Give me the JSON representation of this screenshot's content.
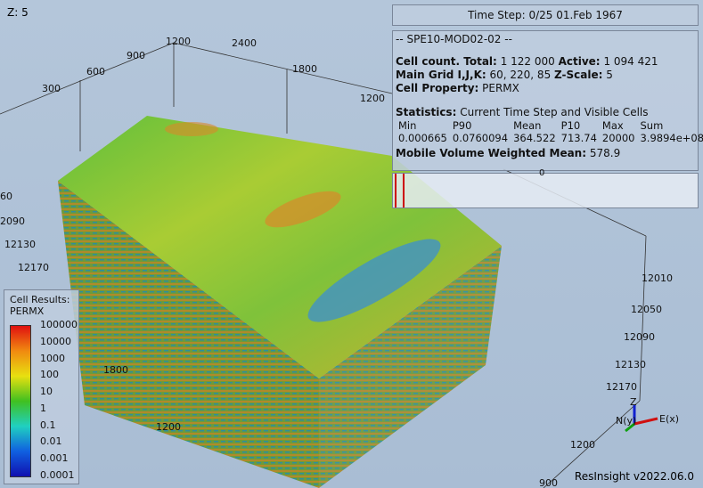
{
  "z_label": "Z: 5",
  "time_step": "Time Step: 0/25 01.Feb 1967",
  "info": {
    "case": "-- SPE10-MOD02-02 --",
    "cell_count_label": "Cell count. Total:",
    "cell_count_total": "1 122 000",
    "active_label": "Active:",
    "active": "1 094 421",
    "grid_label": "Main Grid I,J,K:",
    "grid_ijk": "60, 220, 85",
    "zscale_label": "Z-Scale:",
    "zscale": "5",
    "property_label": "Cell Property:",
    "property": "PERMX",
    "statistics_label": "Statistics:",
    "statistics_scope": "Current Time Step and Visible Cells",
    "stats_headers": [
      "Min",
      "P90",
      "Mean",
      "P10",
      "Max",
      "Sum"
    ],
    "stats_values": [
      "0.000665",
      "0.0760094",
      "364.522",
      "713.74",
      "20000",
      "3.9894e+08"
    ],
    "mobile_mean_label": "Mobile Volume Weighted Mean:",
    "mobile_mean": "578.9"
  },
  "histogram_label": "0",
  "legend": {
    "title": "Cell Results:",
    "property": "PERMX",
    "labels": [
      "100000",
      "10000",
      "1000",
      "100",
      "10",
      "1",
      "0.1",
      "0.01",
      "0.001",
      "0.0001"
    ]
  },
  "axis_labels": [
    "1200",
    "2400",
    "900",
    "1800",
    "600",
    "1200",
    "300",
    "60",
    "2090",
    "12130",
    "12170",
    "1800",
    "1200",
    "12010",
    "12050",
    "12090",
    "12130",
    "12170",
    "1200",
    "900"
  ],
  "triad": {
    "z": "Z",
    "y": "N(y)",
    "x": "E(x)"
  },
  "version": "ResInsight v2022.06.0"
}
